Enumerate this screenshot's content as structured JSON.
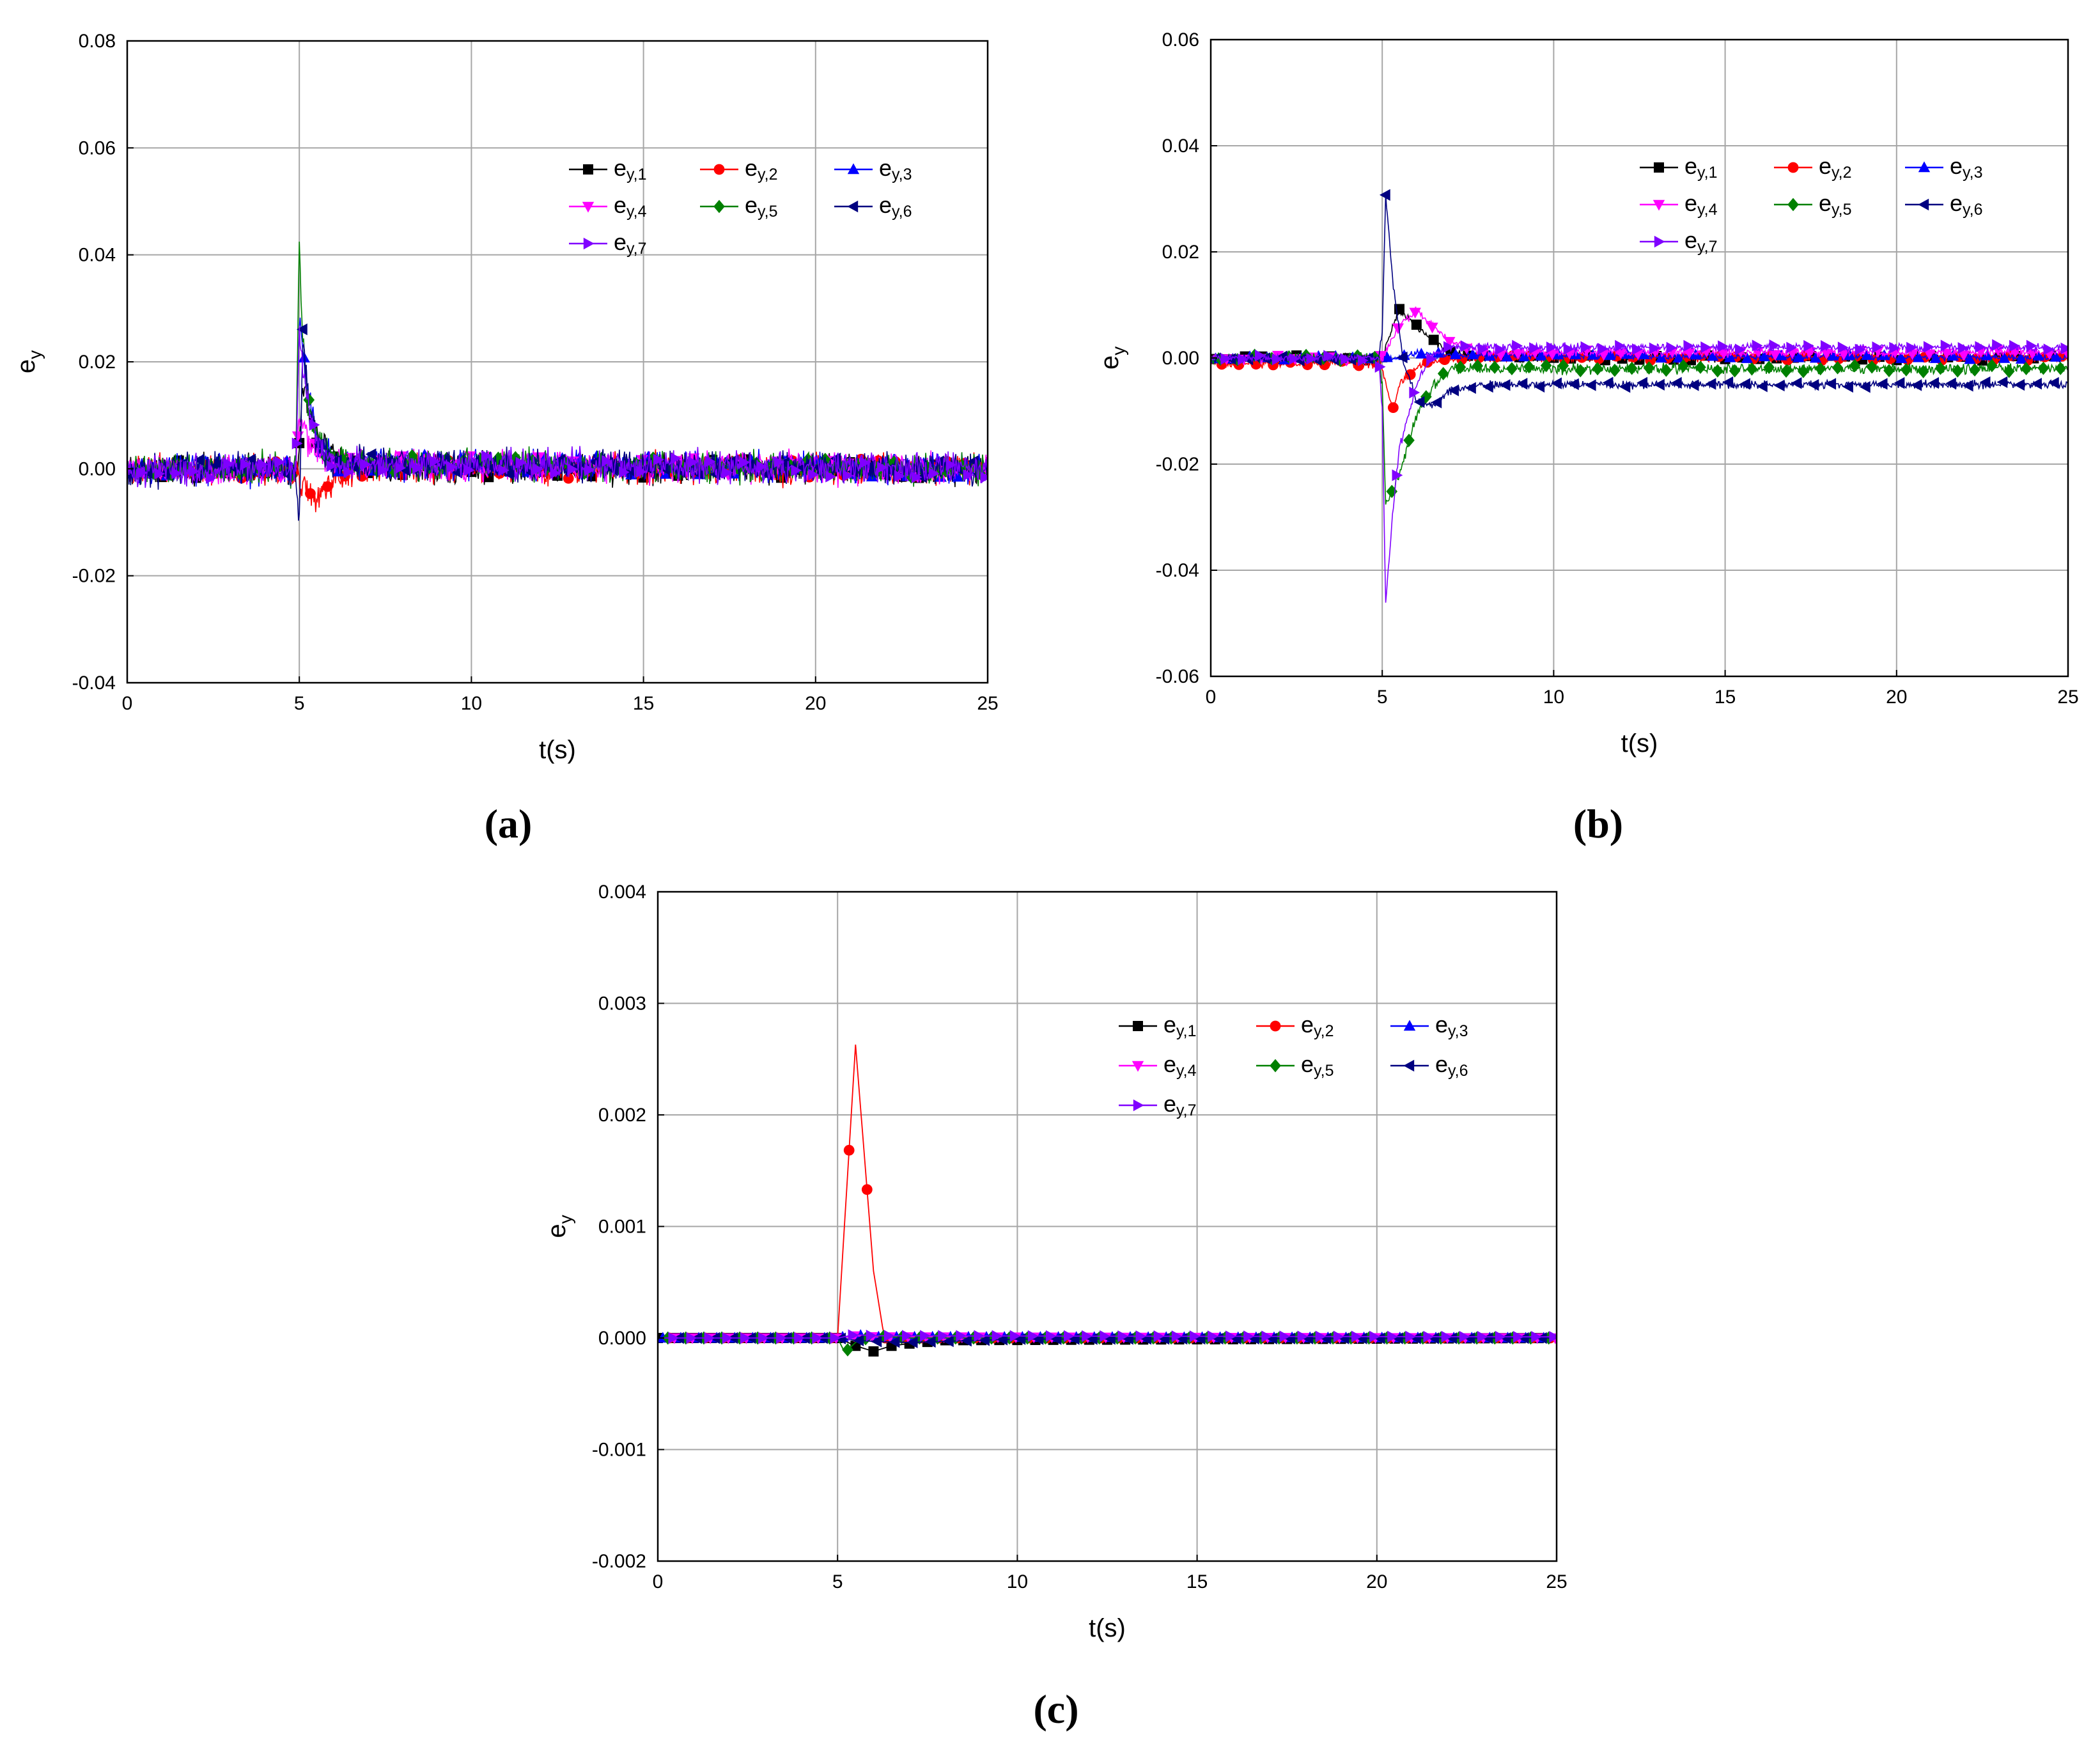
{
  "figure": {
    "legend_prefix": "e",
    "panel_labels": [
      "(a)",
      "(b)",
      "(c)"
    ]
  },
  "colors": {
    "e_y1": "#000000",
    "e_y2": "#ff0000",
    "e_y3": "#0000ff",
    "e_y4": "#ff00ff",
    "e_y5": "#008000",
    "e_y6": "#000080",
    "e_y7": "#8000ff"
  },
  "chart_data": [
    {
      "panel": "(a)",
      "type": "line",
      "xlabel": "t(s)",
      "ylabel": "e",
      "ylabel_sub": "y",
      "xlim": [
        0,
        25
      ],
      "ylim": [
        -0.04,
        0.08
      ],
      "xticks": [
        0,
        5,
        10,
        15,
        20,
        25
      ],
      "xtick_labels": [
        "0",
        "5",
        "10",
        "15",
        "20",
        "25"
      ],
      "yticks": [
        -0.04,
        -0.02,
        0.0,
        0.02,
        0.04,
        0.06,
        0.08
      ],
      "ytick_labels": [
        "-0.04",
        "-0.02",
        "0.00",
        "0.02",
        "0.04",
        "0.06",
        "0.08"
      ],
      "grid": true,
      "legend": {
        "placement": "top-right",
        "columns": 3
      },
      "series": [
        {
          "name": "ey,1",
          "key": "e_y1",
          "sub": "y,1",
          "marker": "square",
          "x": [
            0,
            4.9,
            5.0,
            5.1,
            5.3,
            5.6,
            6.0,
            6.5,
            8,
            25
          ],
          "y": [
            0,
            0,
            0.004,
            0.016,
            0.01,
            0.005,
            0.002,
            0.001,
            0,
            0
          ],
          "noise": 0.003
        },
        {
          "name": "ey,2",
          "key": "e_y2",
          "sub": "y,2",
          "marker": "circle",
          "x": [
            0,
            4.9,
            5.0,
            5.2,
            5.5,
            6.0,
            6.5,
            25
          ],
          "y": [
            0,
            0,
            -0.002,
            -0.005,
            -0.006,
            -0.002,
            0,
            0
          ],
          "noise": 0.003
        },
        {
          "name": "ey,3",
          "key": "e_y3",
          "sub": "y,3",
          "marker": "triangle-up",
          "x": [
            0,
            4.9,
            5.0,
            5.1,
            5.3,
            5.6,
            6.0,
            25
          ],
          "y": [
            0,
            0,
            0.028,
            0.022,
            0.012,
            0.005,
            0.001,
            0
          ],
          "noise": 0.003
        },
        {
          "name": "ey,4",
          "key": "e_y4",
          "sub": "y,4",
          "marker": "triangle-down",
          "x": [
            0,
            4.9,
            5.0,
            5.2,
            5.6,
            6.0,
            25
          ],
          "y": [
            0,
            0,
            0.01,
            0.006,
            0.003,
            0.001,
            0
          ],
          "noise": 0.003
        },
        {
          "name": "ey,5",
          "key": "e_y5",
          "sub": "y,5",
          "marker": "diamond",
          "x": [
            0,
            4.9,
            5.0,
            5.05,
            5.2,
            5.4,
            5.7,
            6.0,
            6.5,
            25
          ],
          "y": [
            0,
            0,
            0.045,
            0.03,
            0.015,
            0.008,
            0.004,
            0.002,
            0.001,
            0
          ],
          "noise": 0.003
        },
        {
          "name": "ey,6",
          "key": "e_y6",
          "sub": "y,6",
          "marker": "triangle-left",
          "x": [
            0,
            4.9,
            5.0,
            5.1,
            5.3,
            5.6,
            6.0,
            25
          ],
          "y": [
            0,
            0,
            -0.012,
            0.025,
            0.01,
            0.004,
            0.001,
            0
          ],
          "noise": 0.003
        },
        {
          "name": "ey,7",
          "key": "e_y7",
          "sub": "y,7",
          "marker": "triangle-right",
          "x": [
            0,
            4.9,
            5.0,
            5.1,
            5.3,
            5.6,
            6.0,
            25
          ],
          "y": [
            0,
            0,
            0.025,
            0.02,
            0.01,
            0.004,
            0.001,
            0
          ],
          "noise": 0.003
        }
      ]
    },
    {
      "panel": "(b)",
      "type": "line",
      "xlabel": "t(s)",
      "ylabel": "e",
      "ylabel_sub": "y",
      "xlim": [
        0,
        25
      ],
      "ylim": [
        -0.06,
        0.06
      ],
      "xticks": [
        0,
        5,
        10,
        15,
        20,
        25
      ],
      "xtick_labels": [
        "0",
        "5",
        "10",
        "15",
        "20",
        "25"
      ],
      "yticks": [
        -0.06,
        -0.04,
        -0.02,
        0.0,
        0.02,
        0.04,
        0.06
      ],
      "ytick_labels": [
        "-0.06",
        "-0.04",
        "-0.02",
        "0.00",
        "0.02",
        "0.04",
        "0.06"
      ],
      "grid": true,
      "legend": {
        "placement": "top-right",
        "columns": 3
      },
      "series": [
        {
          "name": "ey,1",
          "key": "e_y1",
          "sub": "y,1",
          "marker": "square",
          "x": [
            0,
            4.9,
            5.0,
            5.3,
            5.5,
            6.0,
            6.5,
            7.0,
            8.0,
            25
          ],
          "y": [
            0,
            0,
            0,
            0.006,
            0.009,
            0.006,
            0.003,
            0.001,
            0,
            0
          ],
          "noise": 0.0008
        },
        {
          "name": "ey,2",
          "key": "e_y2",
          "sub": "y,2",
          "marker": "circle",
          "x": [
            0,
            4.9,
            5.0,
            5.3,
            5.5,
            5.8,
            6.2,
            7.0,
            25
          ],
          "y": [
            -0.001,
            -0.001,
            -0.002,
            -0.01,
            -0.005,
            -0.003,
            -0.001,
            0,
            0
          ],
          "noise": 0.0008
        },
        {
          "name": "ey,3",
          "key": "e_y3",
          "sub": "y,3",
          "marker": "triangle-up",
          "x": [
            0,
            4.9,
            5.0,
            5.5,
            6.0,
            7.0,
            25
          ],
          "y": [
            0,
            0,
            0,
            0.0,
            0.001,
            0.0005,
            0
          ],
          "noise": 0.0006
        },
        {
          "name": "ey,4",
          "key": "e_y4",
          "sub": "y,4",
          "marker": "triangle-down",
          "x": [
            0,
            4.9,
            5.0,
            5.5,
            6.0,
            6.5,
            7.0,
            8.0,
            25
          ],
          "y": [
            0,
            0,
            0,
            0.006,
            0.009,
            0.006,
            0.003,
            0.001,
            0.001
          ],
          "noise": 0.0008
        },
        {
          "name": "ey,5",
          "key": "e_y5",
          "sub": "y,5",
          "marker": "diamond",
          "x": [
            0,
            4.9,
            5.0,
            5.1,
            5.3,
            5.6,
            6.0,
            6.5,
            7.0,
            8.0,
            25
          ],
          "y": [
            0,
            0,
            -0.005,
            -0.028,
            -0.025,
            -0.02,
            -0.011,
            -0.005,
            -0.002,
            -0.002,
            -0.002
          ],
          "noise": 0.001
        },
        {
          "name": "ey,6",
          "key": "e_y6",
          "sub": "y,6",
          "marker": "triangle-left",
          "x": [
            0,
            4.9,
            5.0,
            5.1,
            5.3,
            5.6,
            6.0,
            6.5,
            7.0,
            8.0,
            25
          ],
          "y": [
            0,
            0,
            0.005,
            0.031,
            0.015,
            0.0,
            -0.008,
            -0.009,
            -0.006,
            -0.005,
            -0.005
          ],
          "noise": 0.0008
        },
        {
          "name": "ey,7",
          "key": "e_y7",
          "sub": "y,7",
          "marker": "triangle-right",
          "x": [
            0,
            4.9,
            5.0,
            5.1,
            5.3,
            5.5,
            6.0,
            6.5,
            7.0,
            8.0,
            25
          ],
          "y": [
            0,
            0,
            -0.01,
            -0.046,
            -0.03,
            -0.017,
            -0.005,
            0.001,
            0.002,
            0.002,
            0.002
          ],
          "noise": 0.0008
        }
      ]
    },
    {
      "panel": "(c)",
      "type": "line",
      "xlabel": "t(s)",
      "ylabel": "e",
      "ylabel_sub": "y",
      "xlim": [
        0,
        25
      ],
      "ylim": [
        -0.002,
        0.004
      ],
      "xticks": [
        0,
        5,
        10,
        15,
        20,
        25
      ],
      "xtick_labels": [
        "0",
        "5",
        "10",
        "15",
        "20",
        "25"
      ],
      "yticks": [
        -0.002,
        -0.001,
        0.0,
        0.001,
        0.002,
        0.003,
        0.004
      ],
      "ytick_labels": [
        "-0.002",
        "-0.001",
        "0.000",
        "0.001",
        "0.002",
        "0.003",
        "0.004"
      ],
      "grid": true,
      "legend": {
        "placement": "top-right",
        "columns": 3
      },
      "series": [
        {
          "name": "ey,1",
          "key": "e_y1",
          "sub": "y,1",
          "marker": "square",
          "x": [
            0,
            5.0,
            5.5,
            6.0,
            6.5,
            7.0,
            8.0,
            25
          ],
          "y": [
            0,
            0,
            -7e-05,
            -0.00012,
            -7e-05,
            -5e-05,
            -2e-05,
            0
          ],
          "noise": 0
        },
        {
          "name": "ey,2",
          "key": "e_y2",
          "sub": "y,2",
          "marker": "circle",
          "x": [
            0,
            5.0,
            5.5,
            6.0,
            6.3,
            7.0,
            25
          ],
          "y": [
            0,
            0,
            0.00263,
            0.0006,
            0,
            0,
            0
          ],
          "noise": 0
        },
        {
          "name": "ey,3",
          "key": "e_y3",
          "sub": "y,3",
          "marker": "triangle-up",
          "x": [
            0,
            5.0,
            5.5,
            6.0,
            25
          ],
          "y": [
            0,
            0,
            3e-05,
            1e-05,
            0
          ],
          "noise": 0
        },
        {
          "name": "ey,4",
          "key": "e_y4",
          "sub": "y,4",
          "marker": "triangle-down",
          "x": [
            0,
            5.0,
            5.5,
            6.0,
            25
          ],
          "y": [
            0,
            0,
            2e-05,
            1e-05,
            0
          ],
          "noise": 0
        },
        {
          "name": "ey,5",
          "key": "e_y5",
          "sub": "y,5",
          "marker": "diamond",
          "x": [
            0,
            5.0,
            5.2,
            5.5,
            6.0,
            7.0,
            25
          ],
          "y": [
            0,
            0,
            -0.00013,
            -4e-05,
            2e-05,
            0,
            0
          ],
          "noise": 0
        },
        {
          "name": "ey,6",
          "key": "e_y6",
          "sub": "y,6",
          "marker": "triangle-left",
          "x": [
            0,
            5.0,
            5.5,
            6.0,
            7.0,
            10.0,
            25
          ],
          "y": [
            0,
            0,
            -2e-05,
            -3e-05,
            -4e-05,
            -1e-05,
            0
          ],
          "noise": 0
        },
        {
          "name": "ey,7",
          "key": "e_y7",
          "sub": "y,7",
          "marker": "triangle-right",
          "x": [
            0,
            5.0,
            5.5,
            6.0,
            25
          ],
          "y": [
            0,
            0,
            3e-05,
            2e-05,
            1e-05
          ],
          "noise": 0
        }
      ]
    }
  ]
}
